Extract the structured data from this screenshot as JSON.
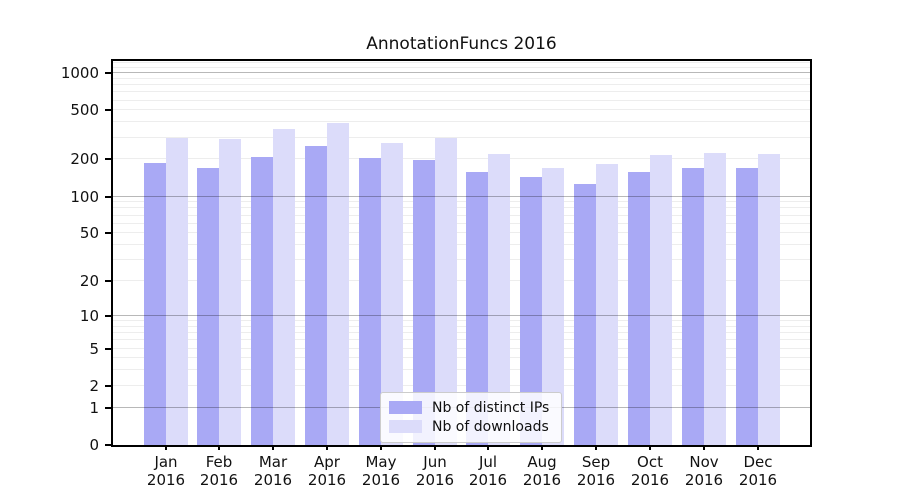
{
  "chart_data": {
    "type": "bar",
    "title": "AnnotationFuncs 2016",
    "categories": [
      "Jan 2016",
      "Feb 2016",
      "Mar 2016",
      "Apr 2016",
      "May 2016",
      "Jun 2016",
      "Jul 2016",
      "Aug 2016",
      "Sep 2016",
      "Oct 2016",
      "Nov 2016",
      "Dec 2016"
    ],
    "series": [
      {
        "name": "Nb of distinct IPs",
        "color": "#a9a9f5",
        "values": [
          188,
          172,
          208,
          257,
          205,
          197,
          158,
          145,
          126,
          158,
          170,
          170
        ]
      },
      {
        "name": "Nb of downloads",
        "color": "#dcdcfa",
        "values": [
          297,
          292,
          350,
          394,
          270,
          297,
          220,
          171,
          184,
          216,
          225,
          221
        ]
      }
    ],
    "yscale": "log10(1+x)",
    "ylim": [
      0,
      1250
    ],
    "yticks": [
      1000,
      500,
      200,
      100,
      50,
      20,
      10,
      5,
      2,
      1,
      0
    ],
    "grid_major": [
      1,
      10,
      100,
      1000
    ],
    "grid_minor": [
      2,
      3,
      4,
      5,
      6,
      7,
      8,
      9,
      20,
      30,
      40,
      50,
      60,
      70,
      80,
      90,
      200,
      300,
      400,
      500,
      600,
      700,
      800,
      900,
      1100,
      1200
    ],
    "grid": true,
    "legend_position": "lower center",
    "xlabel": "",
    "ylabel": ""
  }
}
